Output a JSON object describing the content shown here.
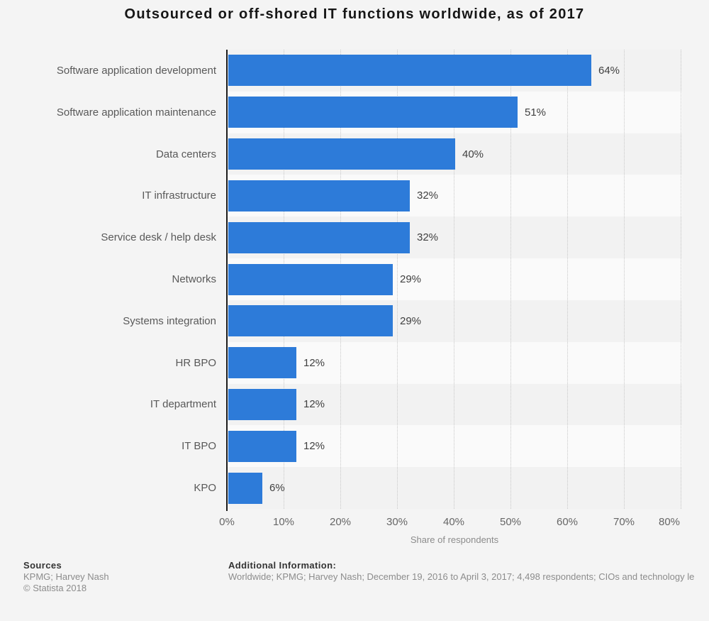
{
  "title": "Outsourced or off-shored IT functions worldwide, as of 2017",
  "chart_data": {
    "type": "bar",
    "orientation": "horizontal",
    "title": "Outsourced or off-shored IT functions worldwide, as of 2017",
    "categories": [
      "Software application development",
      "Software application maintenance",
      "Data centers",
      "IT infrastructure",
      "Service desk / help desk",
      "Networks",
      "Systems integration",
      "HR BPO",
      "IT department",
      "IT BPO",
      "KPO"
    ],
    "values": [
      64,
      51,
      40,
      32,
      32,
      29,
      29,
      12,
      12,
      12,
      6
    ],
    "value_labels": [
      "64%",
      "51%",
      "40%",
      "32%",
      "32%",
      "29%",
      "29%",
      "12%",
      "12%",
      "12%",
      "6%"
    ],
    "xlabel": "Share of respondents",
    "ylabel": "",
    "xlim": [
      0,
      80
    ],
    "x_ticks": [
      "0%",
      "10%",
      "20%",
      "30%",
      "40%",
      "50%",
      "60%",
      "70%",
      "80%"
    ],
    "grid": "vertical dotted gridlines every 10%",
    "legend": "none",
    "bar_color": "#2d7bd9",
    "row_stripe_colors": [
      "#f2f2f2",
      "#fafafa"
    ],
    "axis_color": "#1c1c1c",
    "gridline_color": "#c8c8c8"
  },
  "footer": {
    "sources_heading": "Sources",
    "sources": "KPMG; Harvey Nash",
    "copyright": "© Statista 2018",
    "additional_heading": "Additional Information:",
    "additional_info": "Worldwide; KPMG; Harvey Nash; December 19, 2016 to April 3, 2017; 4,498 respondents; CIOs and technology le"
  }
}
